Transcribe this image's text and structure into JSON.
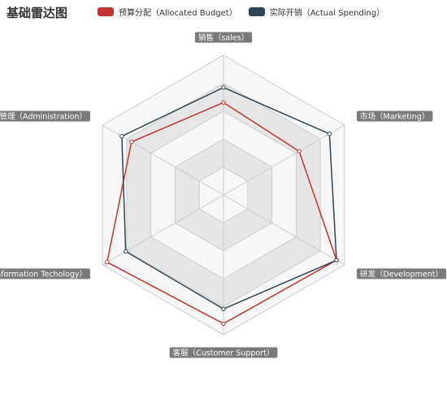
{
  "chart_data": {
    "type": "radar",
    "title": "基础雷达图",
    "indicators": [
      {
        "name": "销售（sales）",
        "max": 6500
      },
      {
        "name": "市场（Marketing）",
        "max": 16000
      },
      {
        "name": "研发（Development）",
        "max": 30000
      },
      {
        "name": "客服（Customer Support）",
        "max": 38000
      },
      {
        "name": "信息技术（Information Techology）",
        "max": 52000
      },
      {
        "name": "管理（Administration）",
        "max": 25000
      }
    ],
    "series": [
      {
        "name": "预算分配（Allocated Budget）",
        "color": "#c23531",
        "values": [
          4300,
          10000,
          28000,
          35000,
          50000,
          19000
        ]
      },
      {
        "name": "实际开销（Actual Spending）",
        "color": "#2f4554",
        "values": [
          5000,
          14000,
          28000,
          31000,
          42000,
          21000
        ]
      }
    ],
    "split_number": 5,
    "legend_position": "top"
  }
}
